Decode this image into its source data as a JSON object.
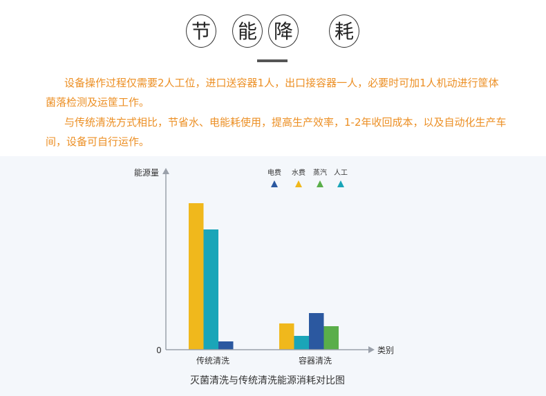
{
  "header": {
    "title_chars": [
      "节",
      "能",
      "降",
      "耗"
    ]
  },
  "paragraphs": [
    "设备操作过程仅需要2人工位，进口送容器1人，出口接容器一人，必要时可加1人机动进行筐体菌落检测及运筐工作。",
    "与传统清洗方式相比，节省水、电能耗使用，提高生产效率，1-2年收回成本，以及自动化生产车间，设备可自行运作。"
  ],
  "chart_data": {
    "type": "bar",
    "title": "灭菌清洗与传统清洗能源消耗对比图",
    "xlabel": "类别",
    "ylabel": "能源量",
    "y_tick_labels": [
      "0"
    ],
    "ylim": [
      0,
      260
    ],
    "grid": false,
    "legend_placement": "top-right",
    "categories": [
      "传统清洗",
      "容器清洗"
    ],
    "series": [
      {
        "name": "水费",
        "color": "#f0b81c",
        "values": [
          212,
          38
        ]
      },
      {
        "name": "人工",
        "color": "#1aa5b8",
        "values": [
          174,
          20
        ]
      },
      {
        "name": "电费",
        "color": "#2b58a0",
        "values": [
          12,
          53
        ]
      },
      {
        "name": "蒸汽",
        "color": "#5aae4a",
        "values": [
          null,
          34
        ]
      }
    ],
    "legend_order": [
      "电费",
      "水费",
      "蒸汽",
      "人工"
    ]
  }
}
